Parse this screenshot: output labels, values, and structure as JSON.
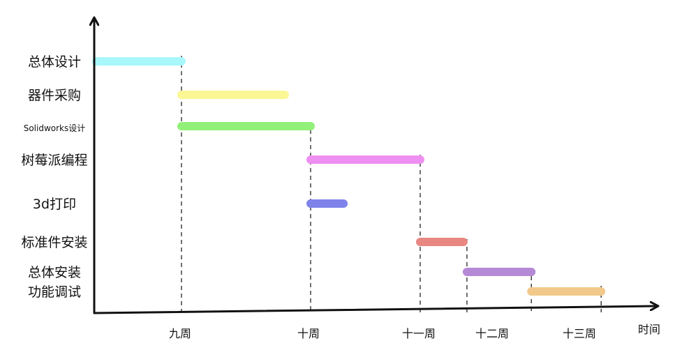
{
  "chart_data": {
    "type": "gantt",
    "title": "",
    "xlabel": "时间",
    "ylabel": "",
    "x_ticks": [
      "九周",
      "十周",
      "十一周",
      "十二周",
      "十三周"
    ],
    "x_range_weeks": [
      8.2,
      13.8
    ],
    "tasks": [
      {
        "name": "总体设计",
        "start": 8.2,
        "end": 9.0,
        "color": "#a8f7fb"
      },
      {
        "name": "器件采购",
        "start": 9.0,
        "end": 9.8,
        "color": "#fbf794"
      },
      {
        "name": "Solidworks设计",
        "start": 9.0,
        "end": 10.0,
        "color": "#92f07a"
      },
      {
        "name": "树莓派编程",
        "start": 10.0,
        "end": 11.0,
        "color": "#ef8ff2"
      },
      {
        "name": "3d打印",
        "start": 10.0,
        "end": 10.3,
        "color": "#7e83ea"
      },
      {
        "name": "标准件安装",
        "start": 11.0,
        "end": 11.6,
        "color": "#e98783"
      },
      {
        "name": "总体安装",
        "start": 11.65,
        "end": 12.45,
        "color": "#b48ad6"
      },
      {
        "name": "功能调试",
        "start": 12.45,
        "end": 13.2,
        "color": "#f2c98b"
      }
    ]
  }
}
